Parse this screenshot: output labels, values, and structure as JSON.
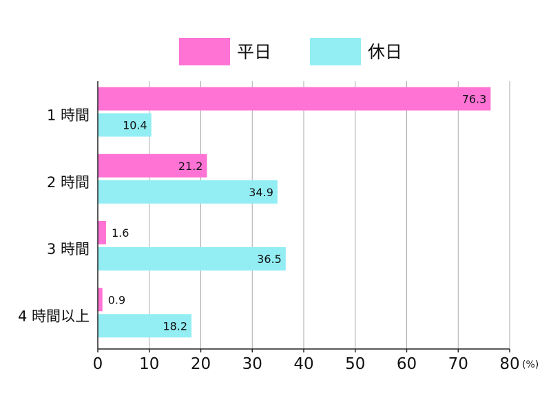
{
  "chart_data": {
    "type": "bar",
    "orientation": "horizontal",
    "categories": [
      "1 時間",
      "2 時間",
      "3 時間",
      "4 時間以上"
    ],
    "series": [
      {
        "name": "平日",
        "color": "#ff73d5",
        "values": [
          76.3,
          21.2,
          1.6,
          0.9
        ]
      },
      {
        "name": "休日",
        "color": "#93eef4",
        "values": [
          10.4,
          34.9,
          36.5,
          18.2
        ]
      }
    ],
    "xlim": [
      0,
      80
    ],
    "xticks": [
      0,
      10,
      20,
      30,
      40,
      50,
      60,
      70,
      80
    ],
    "x_unit": "(%)",
    "grid": true,
    "legend_position": "top"
  }
}
